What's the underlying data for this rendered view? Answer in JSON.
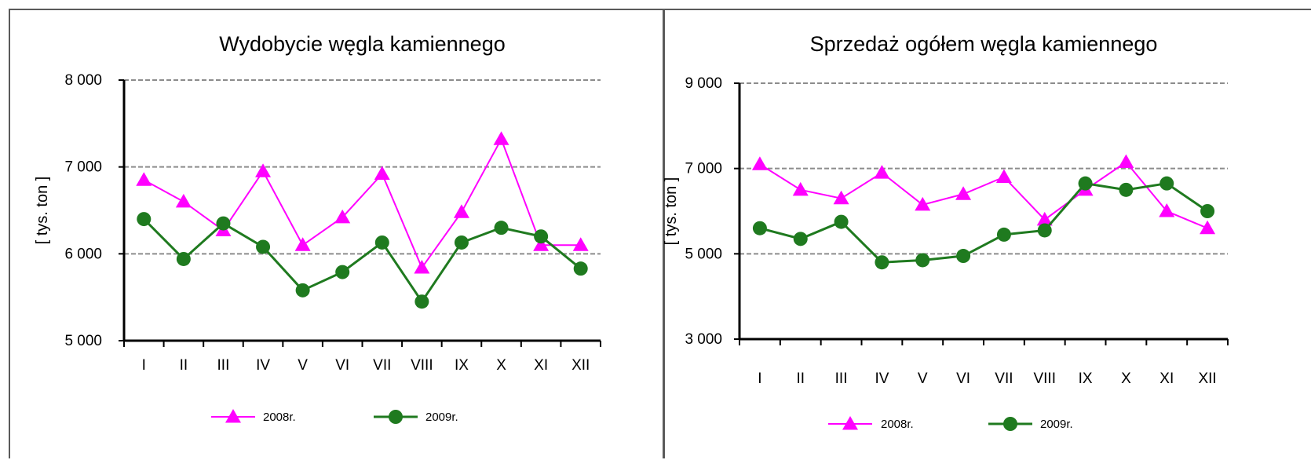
{
  "colors": {
    "series_2008": "#ff00ff",
    "series_2009": "#1f7a1f",
    "gridline": "#8c8c8c",
    "axis": "#000000"
  },
  "chart_data": [
    {
      "type": "line",
      "title": "Wydobycie węgla kamiennego",
      "xlabel": "",
      "ylabel": "[ tys.  ton ]",
      "categories": [
        "I",
        "II",
        "III",
        "IV",
        "V",
        "VI",
        "VII",
        "VIII",
        "IX",
        "X",
        "XI",
        "XII"
      ],
      "ylim": [
        5000,
        8000
      ],
      "yticks": [
        5000,
        6000,
        7000,
        8000
      ],
      "ytick_labels": [
        "5 000",
        "6 000",
        "7 000",
        "8 000"
      ],
      "grid": true,
      "legend_position": "bottom",
      "series": [
        {
          "name": "2008r.",
          "marker": "triangle",
          "color": "#ff00ff",
          "values": [
            6850,
            6600,
            6270,
            6950,
            6100,
            6420,
            6920,
            5840,
            6480,
            7320,
            6100,
            6100
          ]
        },
        {
          "name": "2009r.",
          "marker": "circle",
          "color": "#1f7a1f",
          "values": [
            6400,
            5940,
            6350,
            6080,
            5580,
            5790,
            6130,
            5450,
            6130,
            6300,
            6200,
            5830
          ]
        }
      ]
    },
    {
      "type": "line",
      "title": "Sprzedaż ogółem węgla kamiennego",
      "xlabel": "",
      "ylabel": "[ tys.  ton ]",
      "categories": [
        "I",
        "II",
        "III",
        "IV",
        "V",
        "VI",
        "VII",
        "VIII",
        "IX",
        "X",
        "XI",
        "XII"
      ],
      "ylim": [
        3000,
        9000
      ],
      "yticks": [
        3000,
        5000,
        7000,
        9000
      ],
      "ytick_labels": [
        "3 000",
        "5 000",
        "7 000",
        "9 000"
      ],
      "grid": true,
      "legend_position": "bottom",
      "series": [
        {
          "name": "2008r.",
          "marker": "triangle",
          "color": "#ff00ff",
          "values": [
            7100,
            6500,
            6300,
            6900,
            6150,
            6400,
            6800,
            5800,
            6500,
            7150,
            6000,
            5600
          ]
        },
        {
          "name": "2009r.",
          "marker": "circle",
          "color": "#1f7a1f",
          "values": [
            5600,
            5350,
            5750,
            4800,
            4850,
            4950,
            5450,
            5550,
            6650,
            6500,
            6650,
            6000
          ]
        }
      ]
    }
  ]
}
